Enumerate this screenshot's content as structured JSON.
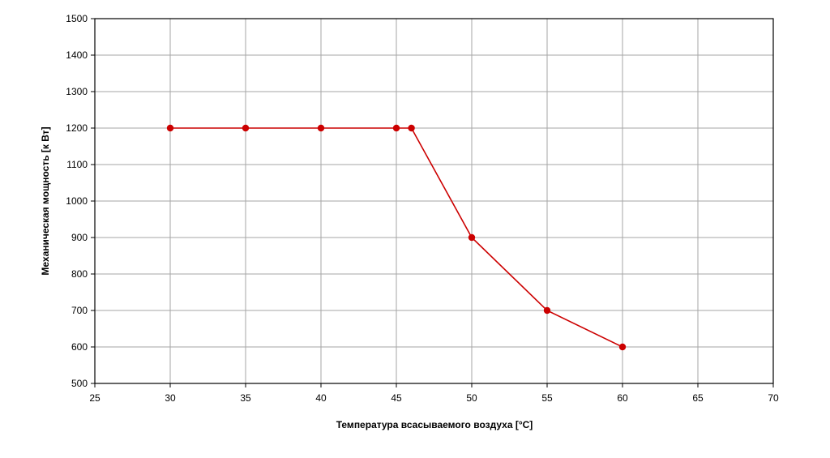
{
  "chart_data": {
    "type": "line",
    "title": "",
    "xlabel": "Температура всасываемого воздуха [°C]",
    "ylabel": "Механическая мощность [к Вт]",
    "xlim": [
      25,
      70
    ],
    "ylim": [
      500,
      1500
    ],
    "xticks": [
      25,
      30,
      35,
      40,
      45,
      50,
      55,
      60,
      65,
      70
    ],
    "yticks": [
      500,
      600,
      700,
      800,
      900,
      1000,
      1100,
      1200,
      1300,
      1400,
      1500
    ],
    "grid": true,
    "series": [
      {
        "color": "#cc0000",
        "x": [
          30,
          35,
          40,
          45,
          46,
          50,
          55,
          60
        ],
        "y": [
          1200,
          1200,
          1200,
          1200,
          1200,
          900,
          700,
          600
        ]
      }
    ]
  }
}
